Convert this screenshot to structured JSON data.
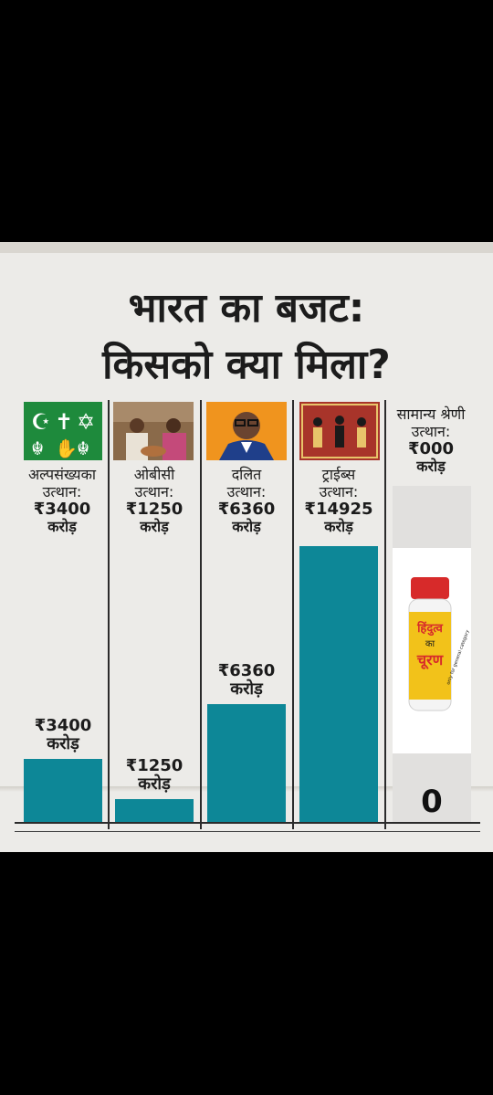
{
  "title_line1": "भारत का बजट:",
  "title_line2": "किसको क्या मिला?",
  "categories": [
    {
      "name": "अल्पसंख्यका",
      "sub": "उत्थान:",
      "amount": "₹3400",
      "unit": "करोड़",
      "value": 3400
    },
    {
      "name": "ओबीसी",
      "sub": "उत्थान:",
      "amount": "₹1250",
      "unit": "करोड़",
      "value": 1250
    },
    {
      "name": "दलित",
      "sub": "उत्थान:",
      "amount": "₹6360",
      "unit": "करोड़",
      "value": 6360
    },
    {
      "name": "ट्राईब्स",
      "sub": "उत्थान:",
      "amount": "₹14925",
      "unit": "करोड़",
      "value": 14925
    }
  ],
  "general": {
    "name": "सामान्य श्रेणी",
    "sub": "उत्थान:",
    "amount": "₹000",
    "unit": "करोड़",
    "zero": "0"
  },
  "jar": {
    "line1": "हिंदुत्व",
    "line2": "का",
    "line3": "चूरण",
    "side": "only for general category"
  },
  "chart_data": {
    "type": "bar",
    "categories": [
      "अल्पसंख्यका",
      "ओबीसी",
      "दलित",
      "ट्राईब्स",
      "सामान्य श्रेणी"
    ],
    "values": [
      3400,
      1250,
      6360,
      14925,
      0
    ],
    "ylabel": "",
    "xlabel": "",
    "bar_color": "#0d8797"
  },
  "colors": {
    "bar": "#0d8797",
    "paper": "#ecebe8",
    "sym_bg": "#1e8a3c",
    "jar_cap": "#d72a2a"
  }
}
